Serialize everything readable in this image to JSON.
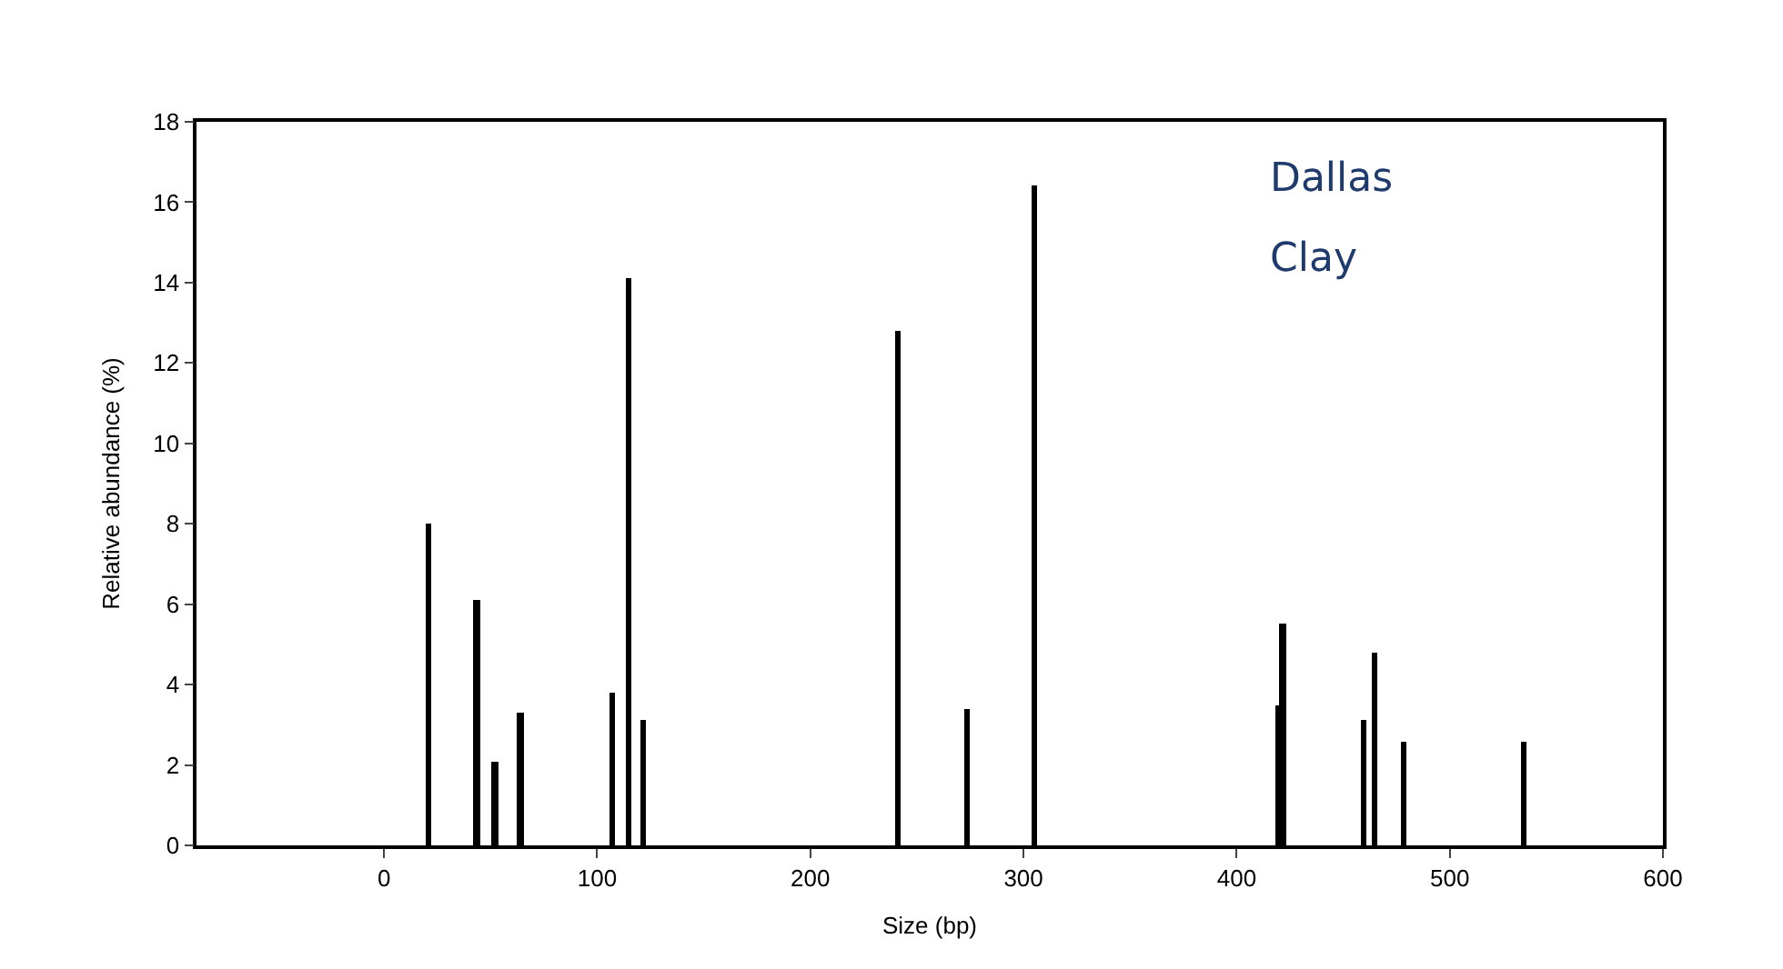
{
  "chart_data": {
    "type": "bar",
    "xlabel": "Size (bp)",
    "ylabel": "Relative abundance (%)",
    "x": [
      21,
      43.5,
      52,
      64,
      107,
      114.7,
      121.8,
      241.2,
      273.7,
      304.8,
      419.2,
      421.5,
      459.6,
      464.4,
      478.6,
      534.5
    ],
    "values": [
      8.0,
      6.1,
      2.1,
      3.3,
      3.8,
      14.1,
      3.1,
      12.8,
      3.4,
      16.4,
      3.5,
      5.5,
      3.1,
      4.8,
      2.6,
      2.6
    ],
    "color": "#000000",
    "xlim": [
      -88,
      600
    ],
    "xticks": [
      0,
      100,
      200,
      300,
      400,
      500,
      600
    ],
    "ylim": [
      0,
      18
    ],
    "yticks": [
      0,
      2,
      4,
      6,
      8,
      10,
      12,
      14,
      16,
      18
    ],
    "annotations": [
      "Dallas",
      "Clay"
    ]
  }
}
